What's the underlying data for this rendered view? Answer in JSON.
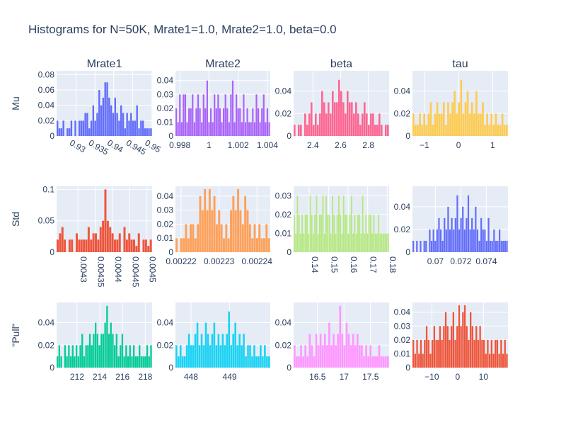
{
  "chart_data": {
    "type": "bar",
    "title": "Histograms for N=50K, Mrate1=1.0, Mrate2=1.0, beta=0.0",
    "column_titles": [
      "Mrate1",
      "Mrate2",
      "beta",
      "tau"
    ],
    "row_titles": [
      "Mu",
      "Std",
      "\"Pull\""
    ],
    "grid": true,
    "background": "#E5ECF6",
    "panels": [
      {
        "row": 0,
        "col": 0,
        "color": "#636EFA",
        "xlim": [
          0.9248,
          0.9502
        ],
        "ylim": [
          0,
          0.085
        ],
        "xticks": [
          0.93,
          0.935,
          0.94,
          0.945,
          0.95
        ],
        "xtick_labels": [
          "0.93",
          "0.935",
          "0.94",
          "0.945",
          "0.95"
        ],
        "xtick_rotation": 30,
        "yticks": [
          0,
          0.02,
          0.04,
          0.06,
          0.08
        ],
        "ytick_labels": [
          "0",
          "0.02",
          "0.04",
          "0.06",
          "0.08"
        ],
        "values": [
          0.02,
          0.01,
          0.01,
          0.02,
          0,
          0.01,
          0.01,
          0.02,
          0,
          0.02,
          0,
          0.02,
          0.02,
          0.02,
          0.03,
          0.03,
          0.01,
          0.02,
          0.04,
          0.02,
          0.03,
          0.06,
          0.04,
          0.05,
          0.07,
          0.07,
          0.05,
          0.04,
          0.03,
          0.05,
          0.03,
          0.02,
          0.04,
          0.03,
          0.01,
          0.03,
          0.02,
          0.03,
          0.02,
          0.02,
          0.04,
          0.01,
          0.02,
          0.02,
          0.01,
          0.01,
          0.01,
          0.01
        ]
      },
      {
        "row": 0,
        "col": 1,
        "color": "#AB63FA",
        "xlim": [
          0.9977,
          1.0042
        ],
        "ylim": [
          0,
          0.047
        ],
        "xticks": [
          0.998,
          1,
          1.002,
          1.004
        ],
        "xtick_labels": [
          "0.998",
          "1",
          "1.002",
          "1.004"
        ],
        "xtick_rotation": 0,
        "yticks": [
          0,
          0.01,
          0.02,
          0.03,
          0.04
        ],
        "ytick_labels": [
          "0",
          "0.01",
          "0.02",
          "0.03",
          "0.04"
        ],
        "values": [
          0.02,
          0.01,
          0.03,
          0.01,
          0.03,
          0.03,
          0.01,
          0.02,
          0.02,
          0.03,
          0.01,
          0.02,
          0.03,
          0.02,
          0.01,
          0.03,
          0.02,
          0.04,
          0.01,
          0.02,
          0.01,
          0.03,
          0.02,
          0.03,
          0.02,
          0.01,
          0.02,
          0.03,
          0.02,
          0.01,
          0.03,
          0.04,
          0.01,
          0.03,
          0.02,
          0.02,
          0.01,
          0.03,
          0.01,
          0.02,
          0.01,
          0.01,
          0.02,
          0.01,
          0.03,
          0.02,
          0.01,
          0.02,
          0.03,
          0.01,
          0.02,
          0.01
        ]
      },
      {
        "row": 0,
        "col": 2,
        "color": "#FF6692",
        "xlim": [
          2.26,
          2.95
        ],
        "ylim": [
          0,
          0.058
        ],
        "xticks": [
          2.4,
          2.6,
          2.8
        ],
        "xtick_labels": [
          "2.4",
          "2.6",
          "2.8"
        ],
        "xtick_rotation": 0,
        "yticks": [
          0,
          0.02,
          0.04
        ],
        "ytick_labels": [
          "0",
          "0.02",
          "0.04"
        ],
        "values": [
          0.01,
          0,
          0.01,
          0.01,
          0,
          0.02,
          0.01,
          0.02,
          0.03,
          0.01,
          0.02,
          0.01,
          0.02,
          0.04,
          0.03,
          0.02,
          0.03,
          0.02,
          0.04,
          0.03,
          0.03,
          0.05,
          0.04,
          0.03,
          0.02,
          0.04,
          0.03,
          0.03,
          0.02,
          0.03,
          0.02,
          0.01,
          0.02,
          0.03,
          0.02,
          0.01,
          0.02,
          0.02,
          0.01,
          0.01,
          0.02,
          0.01,
          0,
          0.01,
          0.01
        ]
      },
      {
        "row": 0,
        "col": 3,
        "color": "#FECB52",
        "xlim": [
          -1.35,
          1.45
        ],
        "ylim": [
          0,
          0.058
        ],
        "xticks": [
          -1,
          0,
          1
        ],
        "xtick_labels": [
          "−1",
          "0",
          "1"
        ],
        "xtick_rotation": 0,
        "yticks": [
          0,
          0.02,
          0.04
        ],
        "ytick_labels": [
          "0",
          "0.02",
          "0.04"
        ],
        "values": [
          0.02,
          0.01,
          0.01,
          0.02,
          0.01,
          0.02,
          0.01,
          0.02,
          0.03,
          0.01,
          0.02,
          0.03,
          0.02,
          0.02,
          0.03,
          0.01,
          0.03,
          0.02,
          0.03,
          0.04,
          0.02,
          0.03,
          0.05,
          0.02,
          0.03,
          0.04,
          0.02,
          0.03,
          0.02,
          0.04,
          0.02,
          0.02,
          0.03,
          0.01,
          0.02,
          0.01,
          0.02,
          0.01,
          0.02,
          0.01,
          0.01,
          0.02,
          0.01,
          0.01
        ]
      },
      {
        "row": 1,
        "col": 0,
        "color": "#EF553B",
        "xlim": [
          0.004238,
          0.004515
        ],
        "ylim": [
          0,
          0.105
        ],
        "xticks": [
          0.0043,
          0.00435,
          0.0044,
          0.00445,
          0.0045
        ],
        "xtick_labels": [
          "0.0043",
          "0.00435",
          "0.0044",
          "0.00445",
          "0.0045"
        ],
        "xtick_rotation": 90,
        "yticks": [
          0,
          0.05,
          0.1
        ],
        "ytick_labels": [
          "0",
          "0.05",
          "0.1"
        ],
        "values": [
          0.02,
          0.03,
          0.04,
          0.02,
          0,
          0.02,
          0.02,
          0,
          0.03,
          0.02,
          0.02,
          0.02,
          0.02,
          0.04,
          0.02,
          0.03,
          0.03,
          0.02,
          0.04,
          0.05,
          0.1,
          0.05,
          0.04,
          0.03,
          0.02,
          0.02,
          0.03,
          0,
          0.04,
          0.02,
          0.03,
          0.02,
          0.02,
          0.01,
          0.03,
          0,
          0.02,
          0.02,
          0.01,
          0.02
        ]
      },
      {
        "row": 1,
        "col": 1,
        "color": "#FFA15A",
        "xlim": [
          0.0022185,
          0.0022435
        ],
        "ylim": [
          0,
          0.047
        ],
        "xticks": [
          0.00222,
          0.00223,
          0.00224
        ],
        "xtick_labels": [
          "0.00222",
          "0.00223",
          "0.00224"
        ],
        "xtick_rotation": 0,
        "yticks": [
          0,
          0.01,
          0.02,
          0.03,
          0.04
        ],
        "ytick_labels": [
          "0",
          "0.01",
          "0.02",
          "0.03",
          "0.04"
        ],
        "values": [
          0.01,
          0,
          0.01,
          0.01,
          0.02,
          0.01,
          0.02,
          0.02,
          0.01,
          0.02,
          0.04,
          0.03,
          0.045,
          0.03,
          0.045,
          0.03,
          0.04,
          0.02,
          0.03,
          0.02,
          0.01,
          0.02,
          0.01,
          0.03,
          0.04,
          0.03,
          0.045,
          0.03,
          0.02,
          0.04,
          0.03,
          0.02,
          0.01,
          0.02,
          0.01,
          0.02,
          0.01,
          0.01,
          0.02,
          0.01
        ]
      },
      {
        "row": 1,
        "col": 2,
        "color": "#B6E880",
        "xlim": [
          0.132,
          0.181
        ],
        "ylim": [
          0,
          0.035
        ],
        "xticks": [
          0.14,
          0.15,
          0.16,
          0.17,
          0.18
        ],
        "xtick_labels": [
          "0.14",
          "0.15",
          "0.16",
          "0.17",
          "0.18"
        ],
        "xtick_rotation": 90,
        "yticks": [
          0,
          0.01,
          0.02,
          0.03
        ],
        "ytick_labels": [
          "0",
          "0.01",
          "0.02",
          "0.03"
        ],
        "values": [
          0.02,
          0.01,
          0.03,
          0.02,
          0.01,
          0.02,
          0.01,
          0.02,
          0.02,
          0.01,
          0.03,
          0.02,
          0.01,
          0.02,
          0.03,
          0.01,
          0.02,
          0.02,
          0.03,
          0.01,
          0.03,
          0.02,
          0.02,
          0.01,
          0.03,
          0.02,
          0.01,
          0.02,
          0.03,
          0.02,
          0.01,
          0.03,
          0.02,
          0.02,
          0.01,
          0.02,
          0.03,
          0.01,
          0.02,
          0.01,
          0.02,
          0.02,
          0.01,
          0.03,
          0.01,
          0.02,
          0.01,
          0.02,
          0.02,
          0.01,
          0.02,
          0.01,
          0.01,
          0.02,
          0.01,
          0.01,
          0.01,
          0.01,
          0.01,
          0.01
        ]
      },
      {
        "row": 1,
        "col": 3,
        "color": "#636EFA",
        "xlim": [
          0.0682,
          0.0757
        ],
        "ylim": [
          0,
          0.058
        ],
        "xticks": [
          0.07,
          0.072,
          0.074
        ],
        "xtick_labels": [
          "0.07",
          "0.072",
          "0.074"
        ],
        "xtick_rotation": 0,
        "yticks": [
          0,
          0.02,
          0.04
        ],
        "ytick_labels": [
          "0",
          "0.02",
          "0.04"
        ],
        "values": [
          0.01,
          0,
          0.01,
          0,
          0.01,
          0,
          0.01,
          0.01,
          0,
          0.02,
          0.01,
          0.02,
          0.01,
          0.02,
          0.03,
          0.02,
          0.01,
          0.03,
          0.02,
          0.04,
          0.02,
          0.03,
          0.02,
          0.03,
          0.05,
          0.02,
          0.03,
          0.04,
          0.02,
          0.03,
          0.05,
          0.02,
          0.03,
          0.02,
          0.04,
          0.02,
          0.01,
          0.03,
          0.02,
          0.02,
          0.01,
          0.03,
          0.01,
          0.01,
          0.02,
          0.01,
          0.01,
          0.02,
          0.01,
          0.01,
          0.01,
          0.01
        ]
      },
      {
        "row": 2,
        "col": 0,
        "color": "#00CC96",
        "xlim": [
          210.2,
          218.6
        ],
        "ylim": [
          0,
          0.058
        ],
        "xticks": [
          212,
          214,
          216,
          218
        ],
        "xtick_labels": [
          "212",
          "214",
          "216",
          "218"
        ],
        "xtick_rotation": 0,
        "yticks": [
          0,
          0.02,
          0.04
        ],
        "ytick_labels": [
          "0",
          "0.02",
          "0.04"
        ],
        "values": [
          0.01,
          0.02,
          0.01,
          0,
          0.02,
          0.01,
          0.02,
          0.01,
          0.02,
          0.01,
          0.02,
          0.01,
          0.02,
          0.03,
          0.01,
          0.02,
          0.02,
          0.03,
          0.02,
          0.03,
          0.04,
          0.03,
          0.02,
          0.03,
          0.03,
          0.04,
          0.055,
          0.03,
          0.04,
          0.03,
          0.02,
          0.03,
          0.01,
          0.02,
          0.03,
          0.01,
          0.02,
          0.01,
          0.02,
          0.01,
          0.02,
          0.01,
          0.01,
          0.02,
          0.01,
          0.01,
          0.01,
          0.02,
          0.01,
          0.02
        ]
      },
      {
        "row": 2,
        "col": 1,
        "color": "#19D3F3",
        "xlim": [
          447.6,
          450.05
        ],
        "ylim": [
          0,
          0.058
        ],
        "xticks": [
          448,
          449
        ],
        "xtick_labels": [
          "448",
          "449"
        ],
        "xtick_rotation": 0,
        "yticks": [
          0,
          0.02,
          0.04
        ],
        "ytick_labels": [
          "0",
          "0.02",
          "0.04"
        ],
        "values": [
          0.02,
          0.01,
          0.02,
          0.01,
          0.01,
          0.02,
          0.03,
          0.02,
          0.02,
          0.03,
          0.04,
          0.02,
          0.03,
          0.02,
          0.04,
          0.03,
          0.02,
          0.03,
          0.04,
          0.02,
          0.03,
          0.02,
          0.03,
          0.02,
          0.03,
          0.05,
          0.02,
          0.03,
          0.04,
          0.02,
          0.03,
          0.02,
          0.03,
          0.01,
          0.02,
          0.02,
          0.01,
          0.02,
          0.01,
          0.01,
          0.02,
          0.01,
          0.02,
          0.01,
          0.01
        ]
      },
      {
        "row": 2,
        "col": 2,
        "color": "#FF97FF",
        "xlim": [
          16.05,
          17.85
        ],
        "ylim": [
          0,
          0.058
        ],
        "xticks": [
          16.5,
          17,
          17.5
        ],
        "xtick_labels": [
          "16.5",
          "17",
          "17.5"
        ],
        "xtick_rotation": 0,
        "yticks": [
          0,
          0.02,
          0.04
        ],
        "ytick_labels": [
          "0",
          "0.02",
          "0.04"
        ],
        "values": [
          0.02,
          0.01,
          0.01,
          0.02,
          0.01,
          0.02,
          0.01,
          0.03,
          0.02,
          0.01,
          0.03,
          0.02,
          0.03,
          0.02,
          0.03,
          0.02,
          0.04,
          0.02,
          0.03,
          0.02,
          0.03,
          0.055,
          0.03,
          0.02,
          0.04,
          0.03,
          0.02,
          0.03,
          0.02,
          0.03,
          0.02,
          0.02,
          0.01,
          0.02,
          0.01,
          0.02,
          0.01,
          0.01,
          0.01,
          0.02,
          0.01,
          0.01,
          0.01,
          0.01
        ]
      },
      {
        "row": 2,
        "col": 3,
        "color": "#EF553B",
        "xlim": [
          -17.5,
          19.5
        ],
        "ylim": [
          0,
          0.047
        ],
        "xticks": [
          -10,
          0,
          10
        ],
        "xtick_labels": [
          "−10",
          "0",
          "10"
        ],
        "xtick_rotation": 0,
        "yticks": [
          0,
          0.01,
          0.02,
          0.03,
          0.04
        ],
        "ytick_labels": [
          "0",
          "0.01",
          "0.02",
          "0.03",
          "0.04"
        ],
        "values": [
          0.02,
          0.01,
          0.02,
          0.01,
          0.02,
          0.01,
          0.02,
          0.03,
          0.02,
          0.01,
          0.02,
          0.03,
          0.02,
          0.02,
          0.03,
          0.02,
          0.03,
          0.04,
          0.03,
          0.02,
          0.03,
          0.04,
          0.02,
          0.03,
          0.045,
          0.03,
          0.04,
          0.045,
          0.03,
          0.02,
          0.04,
          0.03,
          0.02,
          0.03,
          0.02,
          0.03,
          0.02,
          0.02,
          0.01,
          0.02,
          0.01,
          0.02,
          0.01,
          0.02,
          0.02,
          0.01,
          0.02,
          0.01,
          0.02,
          0.01
        ]
      }
    ]
  }
}
